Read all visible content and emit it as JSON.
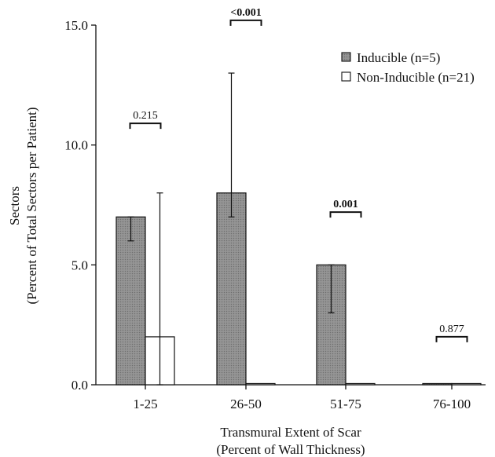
{
  "chart_data": {
    "type": "bar",
    "xlabel": [
      "Transmural Extent of Scar",
      "(Percent of Wall Thickness)"
    ],
    "ylabel": [
      "Sectors",
      "(Percent of Total Sectors per Patient)"
    ],
    "ylim": [
      0,
      15
    ],
    "yticks": [
      "0.0",
      "5.0",
      "10.0",
      "15.0"
    ],
    "categories": [
      "1-25",
      "26-50",
      "51-75",
      "76-100"
    ],
    "legend_position": "top-right",
    "series": [
      {
        "name": "Inducible (n=5)",
        "color": "#8c8c8c",
        "values": [
          7.0,
          8.0,
          5.0,
          0.05
        ],
        "err_low": [
          6.0,
          7.0,
          3.0,
          0.0
        ],
        "err_high": [
          7.0,
          13.0,
          5.0,
          0.05
        ]
      },
      {
        "name": "Non-Inducible (n=21)",
        "color": "#ffffff",
        "values": [
          2.0,
          0.05,
          0.05,
          0.05
        ],
        "err_low": [
          0.0,
          0.0,
          0.0,
          0.0
        ],
        "err_high": [
          8.0,
          0.05,
          0.05,
          0.05
        ]
      }
    ],
    "annotations": [
      {
        "category": "1-25",
        "text": "0.215",
        "bold": false,
        "level": 10.9
      },
      {
        "category": "26-50",
        "text": "<0.001",
        "bold": true,
        "level": 15.2
      },
      {
        "category": "51-75",
        "text": "0.001",
        "bold": true,
        "level": 7.2
      },
      {
        "category": "76-100",
        "text": "0.877",
        "bold": false,
        "level": 2.0
      }
    ]
  }
}
